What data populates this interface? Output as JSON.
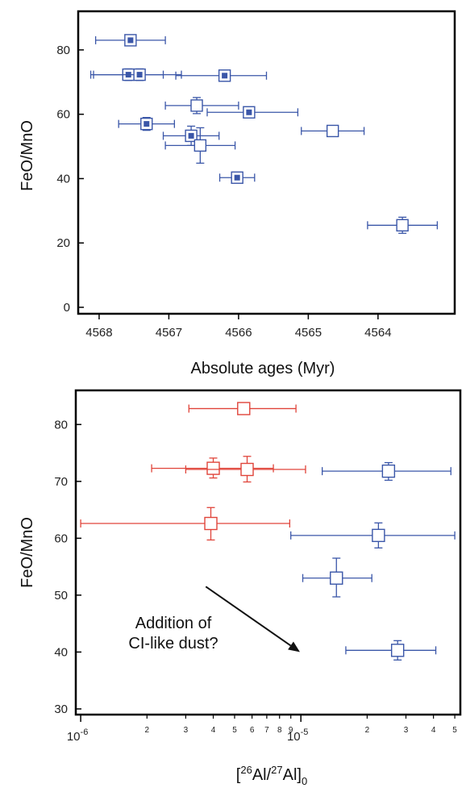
{
  "chart_data": [
    {
      "type": "scatter",
      "xlabel": "Absolute ages (Myr)",
      "ylabel": "FeO/MnO",
      "xlim": [
        4568.3,
        4562.9
      ],
      "ylim": [
        -2,
        92
      ],
      "xticks": [
        4568,
        4567,
        4566,
        4565,
        4564
      ],
      "yticks": [
        0,
        20,
        40,
        60,
        80
      ],
      "xtick_labels": [
        "4568",
        "4567",
        "4566",
        "4565",
        "4564"
      ],
      "ytick_labels": [
        "0",
        "20",
        "40",
        "60",
        "80"
      ],
      "colors": {
        "series": "#3a56a8",
        "frame": "#000000"
      },
      "series": [
        {
          "marker": "square-filled",
          "points": [
            {
              "x": 4567.55,
              "y": 83.0,
              "xerr": [
                0.5,
                0.5
              ],
              "yerr": [
                0,
                0
              ]
            },
            {
              "x": 4567.58,
              "y": 72.3,
              "xerr": [
                0.5,
                0.5
              ],
              "yerr": [
                1.8,
                1.8
              ]
            },
            {
              "x": 4567.42,
              "y": 72.3,
              "xerr": [
                0.7,
                0.6
              ],
              "yerr": [
                1.8,
                1.8
              ]
            },
            {
              "x": 4566.2,
              "y": 72.0,
              "xerr": [
                0.7,
                0.6
              ],
              "yerr": [
                0,
                0
              ]
            },
            {
              "x": 4565.85,
              "y": 60.6,
              "xerr": [
                0.6,
                0.7
              ],
              "yerr": [
                1.5,
                1.5
              ]
            },
            {
              "x": 4567.32,
              "y": 57.0,
              "xerr": [
                0.4,
                0.4
              ],
              "yerr": [
                2.0,
                2.0
              ]
            },
            {
              "x": 4566.68,
              "y": 53.3,
              "xerr": [
                0.4,
                0.4
              ],
              "yerr": [
                3.0,
                3.0
              ]
            },
            {
              "x": 4566.02,
              "y": 40.3,
              "xerr": [
                0.25,
                0.25
              ],
              "yerr": [
                0,
                0
              ]
            }
          ]
        },
        {
          "marker": "square-open",
          "points": [
            {
              "x": 4566.6,
              "y": 62.7,
              "xerr": [
                0.45,
                0.6
              ],
              "yerr": [
                2.5,
                2.5
              ]
            },
            {
              "x": 4564.65,
              "y": 54.8,
              "xerr": [
                0.45,
                0.45
              ],
              "yerr": [
                0,
                0
              ]
            },
            {
              "x": 4566.55,
              "y": 50.3,
              "xerr": [
                0.5,
                0.5
              ],
              "yerr": [
                5.5,
                5.5
              ]
            },
            {
              "x": 4563.65,
              "y": 25.5,
              "xerr": [
                0.5,
                0.5
              ],
              "yerr": [
                2.5,
                2.5
              ]
            }
          ]
        }
      ]
    },
    {
      "type": "scatter",
      "xlabel_parts": [
        "[",
        "26",
        "Al/",
        "27",
        "Al]",
        "0"
      ],
      "ylabel": "FeO/MnO",
      "xscale": "log",
      "xlim": [
        9.5e-07,
        5.3e-05
      ],
      "ylim": [
        29,
        86
      ],
      "yticks": [
        30,
        40,
        50,
        60,
        70,
        80
      ],
      "ytick_labels": [
        "30",
        "40",
        "50",
        "60",
        "70",
        "80"
      ],
      "xtick_decades": [
        {
          "value": 1e-06,
          "base": "10",
          "exp": "-6"
        },
        {
          "value": 1e-05,
          "base": "10",
          "exp": "-5"
        }
      ],
      "xtick_minor": [
        {
          "value": 2e-06,
          "label": "2"
        },
        {
          "value": 3e-06,
          "label": "3"
        },
        {
          "value": 4e-06,
          "label": "4"
        },
        {
          "value": 5e-06,
          "label": "5"
        },
        {
          "value": 6e-06,
          "label": "6"
        },
        {
          "value": 7e-06,
          "label": "7"
        },
        {
          "value": 8e-06,
          "label": "8"
        },
        {
          "value": 9e-06,
          "label": "9"
        },
        {
          "value": 2e-05,
          "label": "2"
        },
        {
          "value": 3e-05,
          "label": "3"
        },
        {
          "value": 4e-05,
          "label": "4"
        },
        {
          "value": 5e-05,
          "label": "5"
        }
      ],
      "colors": {
        "red": "#e0443a",
        "blue": "#3a56a8",
        "arrow": "#111111"
      },
      "series": [
        {
          "color": "red",
          "points": [
            {
              "x": 5.5e-06,
              "y": 82.8,
              "xlo": 3.1e-06,
              "xhi": 9.5e-06,
              "ylo": 82.8,
              "yhi": 82.8
            },
            {
              "x": 4e-06,
              "y": 72.3,
              "xlo": 2.1e-06,
              "xhi": 7.5e-06,
              "ylo": 70.6,
              "yhi": 74.1
            },
            {
              "x": 5.7e-06,
              "y": 72.1,
              "xlo": 3e-06,
              "xhi": 1.05e-05,
              "ylo": 69.9,
              "yhi": 74.4
            },
            {
              "x": 3.9e-06,
              "y": 62.6,
              "xlo": 1e-06,
              "xhi": 8.9e-06,
              "ylo": 59.7,
              "yhi": 65.4
            }
          ]
        },
        {
          "color": "blue",
          "points": [
            {
              "x": 2.5e-05,
              "y": 71.8,
              "xlo": 1.25e-05,
              "xhi": 4.8e-05,
              "ylo": 70.2,
              "yhi": 73.3
            },
            {
              "x": 2.25e-05,
              "y": 60.5,
              "xlo": 9e-06,
              "xhi": 5e-05,
              "ylo": 58.3,
              "yhi": 62.7
            },
            {
              "x": 1.45e-05,
              "y": 53.0,
              "xlo": 1.02e-05,
              "xhi": 2.1e-05,
              "ylo": 49.7,
              "yhi": 56.5
            },
            {
              "x": 2.75e-05,
              "y": 40.3,
              "xlo": 1.6e-05,
              "xhi": 4.1e-05,
              "ylo": 38.6,
              "yhi": 42.0
            }
          ]
        }
      ],
      "annotation": {
        "lines": [
          "Addition of",
          "CI-like dust?"
        ],
        "arrow_from": {
          "x": 3.7e-06,
          "y": 51.5
        },
        "arrow_to": {
          "x": 9.9e-06,
          "y": 40.0
        }
      }
    }
  ]
}
